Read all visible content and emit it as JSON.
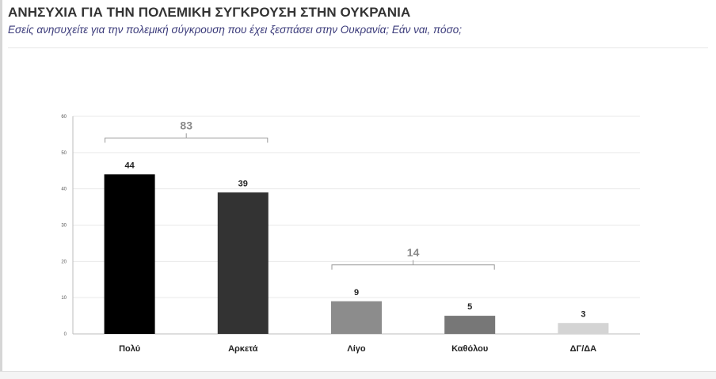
{
  "header": {
    "title": "ΑΝΗΣΥΧΙΑ ΓΙΑ ΤΗΝ ΠΟΛΕΜΙΚΗ ΣΥΓΚΡΟΥΣΗ ΣΤΗΝ ΟΥΚΡΑΝΙΑ",
    "subtitle": "Εσείς ανησυχείτε για την πολεμική σύγκρουση που έχει ξεσπάσει στην Ουκρανία; Εάν ναι, πόσο;"
  },
  "chart_data": {
    "type": "bar",
    "categories": [
      "Πολύ",
      "Αρκετά",
      "Λίγο",
      "Καθόλου",
      "ΔΓ/ΔΑ"
    ],
    "values": [
      44,
      39,
      9,
      5,
      3
    ],
    "data_labels": [
      "44",
      "39",
      "9",
      "5",
      "3"
    ],
    "colors": [
      "#000000",
      "#333333",
      "#8c8c8c",
      "#777777",
      "#d4d4d4"
    ],
    "ylim": [
      0,
      60
    ],
    "yticks": [
      0,
      10,
      20,
      30,
      40,
      50,
      60
    ],
    "grid": true,
    "groups": [
      {
        "label": "83",
        "from": 0,
        "to": 1
      },
      {
        "label": "14",
        "from": 2,
        "to": 3
      }
    ],
    "xlabel": "",
    "ylabel": ""
  }
}
